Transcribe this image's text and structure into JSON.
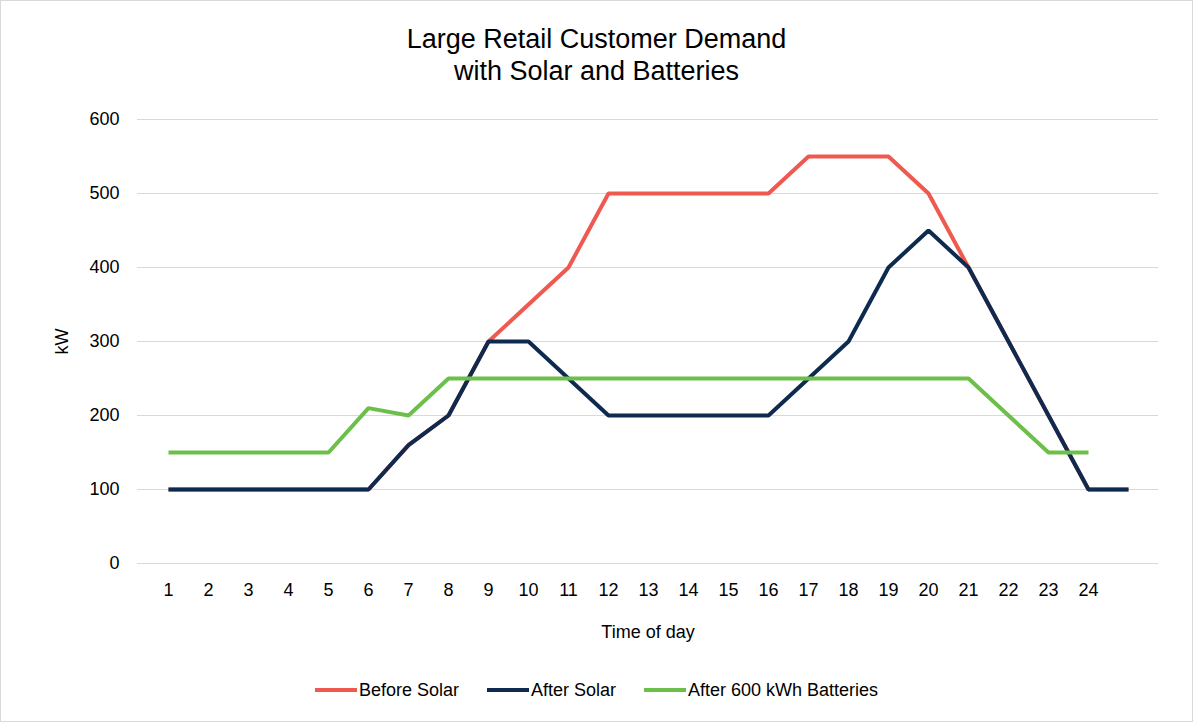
{
  "chart_data": {
    "type": "line",
    "title": "Large Retail Customer Demand\nwith Solar and Batteries",
    "x_label": "Time of day",
    "y_label": "kW",
    "categories": [
      "1",
      "2",
      "3",
      "4",
      "5",
      "6",
      "7",
      "8",
      "9",
      "10",
      "11",
      "12",
      "13",
      "14",
      "15",
      "16",
      "17",
      "18",
      "19",
      "20",
      "21",
      "22",
      "23",
      "24",
      null
    ],
    "series": [
      {
        "name": "Before Solar",
        "color": "#ef5a50",
        "values": [
          100,
          100,
          100,
          100,
          100,
          100,
          160,
          200,
          300,
          350,
          400,
          500,
          500,
          500,
          500,
          500,
          550,
          550,
          550,
          500,
          400,
          300,
          200,
          100,
          100
        ]
      },
      {
        "name": "After Solar",
        "color": "#0e2a4f",
        "values": [
          100,
          100,
          100,
          100,
          100,
          100,
          160,
          200,
          300,
          300,
          250,
          200,
          200,
          200,
          200,
          200,
          250,
          300,
          400,
          450,
          400,
          300,
          200,
          100,
          100
        ]
      },
      {
        "name": "After 600 kWh Batteries",
        "color": "#6cbf4a",
        "values": [
          150,
          150,
          150,
          150,
          150,
          210,
          200,
          250,
          250,
          250,
          250,
          250,
          250,
          250,
          250,
          250,
          250,
          250,
          250,
          250,
          250,
          200,
          150,
          150,
          null
        ]
      }
    ],
    "ylim": [
      0,
      600
    ],
    "yticks": [
      0,
      100,
      200,
      300,
      400,
      500,
      600
    ],
    "grid": true,
    "legend": "bottom"
  }
}
